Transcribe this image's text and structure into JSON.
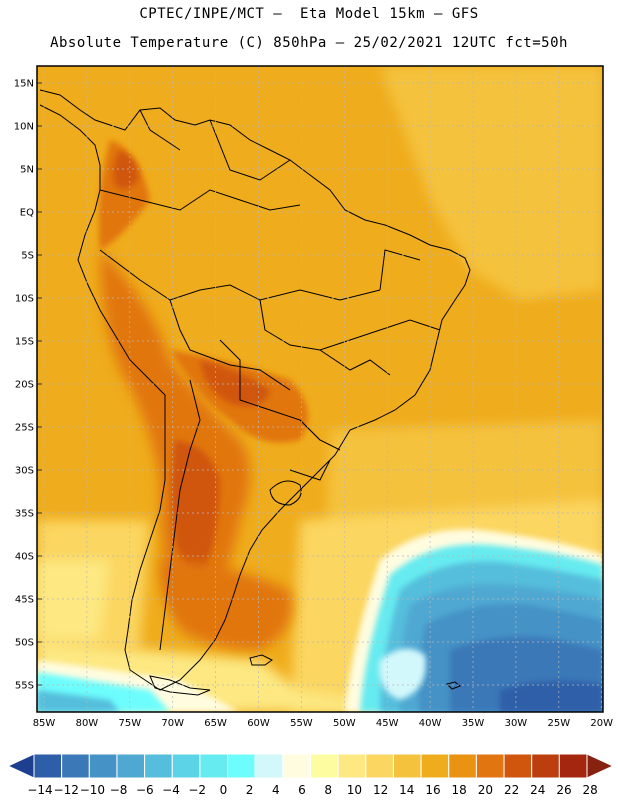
{
  "header": {
    "line1": "CPTEC/INPE/MCT –  Eta Model 15km – GFS",
    "line2": "Absolute Temperature (C) 850hPa – 25/02/2021 12UTC fct=50h"
  },
  "map": {
    "lat_labels": [
      "15N",
      "10N",
      "5N",
      "EQ",
      "5S",
      "10S",
      "15S",
      "20S",
      "25S",
      "30S",
      "35S",
      "40S",
      "45S",
      "50S",
      "55S"
    ],
    "lon_labels": [
      "85W",
      "80W",
      "75W",
      "70W",
      "65W",
      "60W",
      "55W",
      "50W",
      "45W",
      "40W",
      "35W",
      "30W",
      "25W",
      "20W"
    ],
    "field": "temperature-850hPa"
  },
  "colorbar": {
    "labels": [
      "-14",
      "-12",
      "-10",
      "-8",
      "-6",
      "-4",
      "-2",
      "0",
      "2",
      "4",
      "6",
      "8",
      "10",
      "12",
      "14",
      "16",
      "18",
      "20",
      "22",
      "24",
      "26",
      "28"
    ],
    "colors": [
      "#1c3f8f",
      "#2e5ea8",
      "#3a78b8",
      "#4592c6",
      "#4fa8d2",
      "#55bedc",
      "#5cd3e6",
      "#66ebf0",
      "#6dfdfd",
      "#d2f8fc",
      "#fffce0",
      "#fefca0",
      "#fde882",
      "#fbd660",
      "#f5c23e",
      "#efac1c",
      "#ea9212",
      "#e17610",
      "#d0560e",
      "#bc3d0e",
      "#a4260e",
      "#872210"
    ]
  }
}
